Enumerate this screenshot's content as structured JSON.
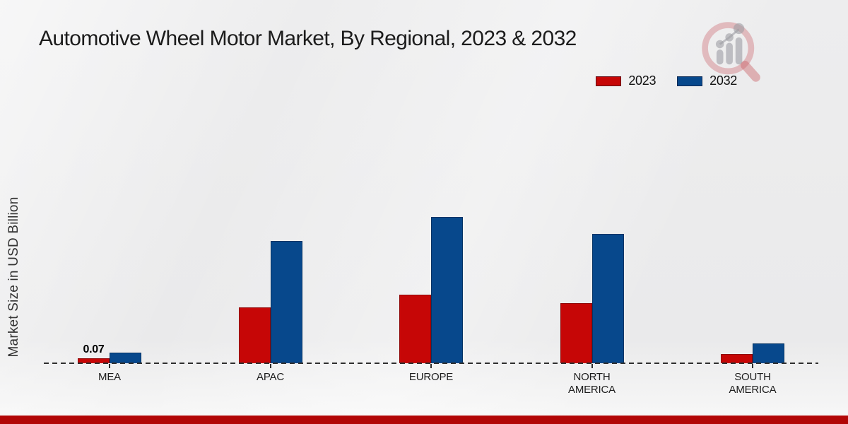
{
  "title": "Automotive Wheel Motor Market, By Regional, 2023 & 2032",
  "y_axis_label": "Market Size in USD Billion",
  "legend": [
    {
      "label": "2023",
      "color": "#c60606"
    },
    {
      "label": "2032",
      "color": "#07488c"
    }
  ],
  "colors": {
    "bar_2023": "#c60606",
    "bar_2032": "#07488c",
    "footer_strip": "#b20606",
    "baseline": "#2e2e2e",
    "background": "#ececee"
  },
  "logo": {
    "name": "magnifier-growth-chart-logo"
  },
  "chart_data": {
    "type": "bar",
    "title": "Automotive Wheel Motor Market, By Regional, 2023 & 2032",
    "xlabel": "",
    "ylabel": "Market Size in USD Billion",
    "categories": [
      "MEA",
      "APAC",
      "EUROPE",
      "NORTH AMERICA",
      "SOUTH AMERICA"
    ],
    "series": [
      {
        "name": "2023",
        "color": "#c60606",
        "values": [
          0.07,
          0.79,
          0.97,
          0.85,
          0.13
        ],
        "labels": [
          "0.07",
          "",
          "",
          "",
          ""
        ]
      },
      {
        "name": "2032",
        "color": "#07488c",
        "values": [
          0.15,
          1.73,
          2.07,
          1.83,
          0.28
        ],
        "labels": [
          "",
          "",
          "",
          "",
          ""
        ]
      }
    ],
    "ylim": [
      0,
      2.3
    ],
    "grid": false,
    "baseline_style": "dashed",
    "legend_position": "top-right",
    "data_label_note": "only MEA 2023 bar carries a printed value (0.07)"
  }
}
